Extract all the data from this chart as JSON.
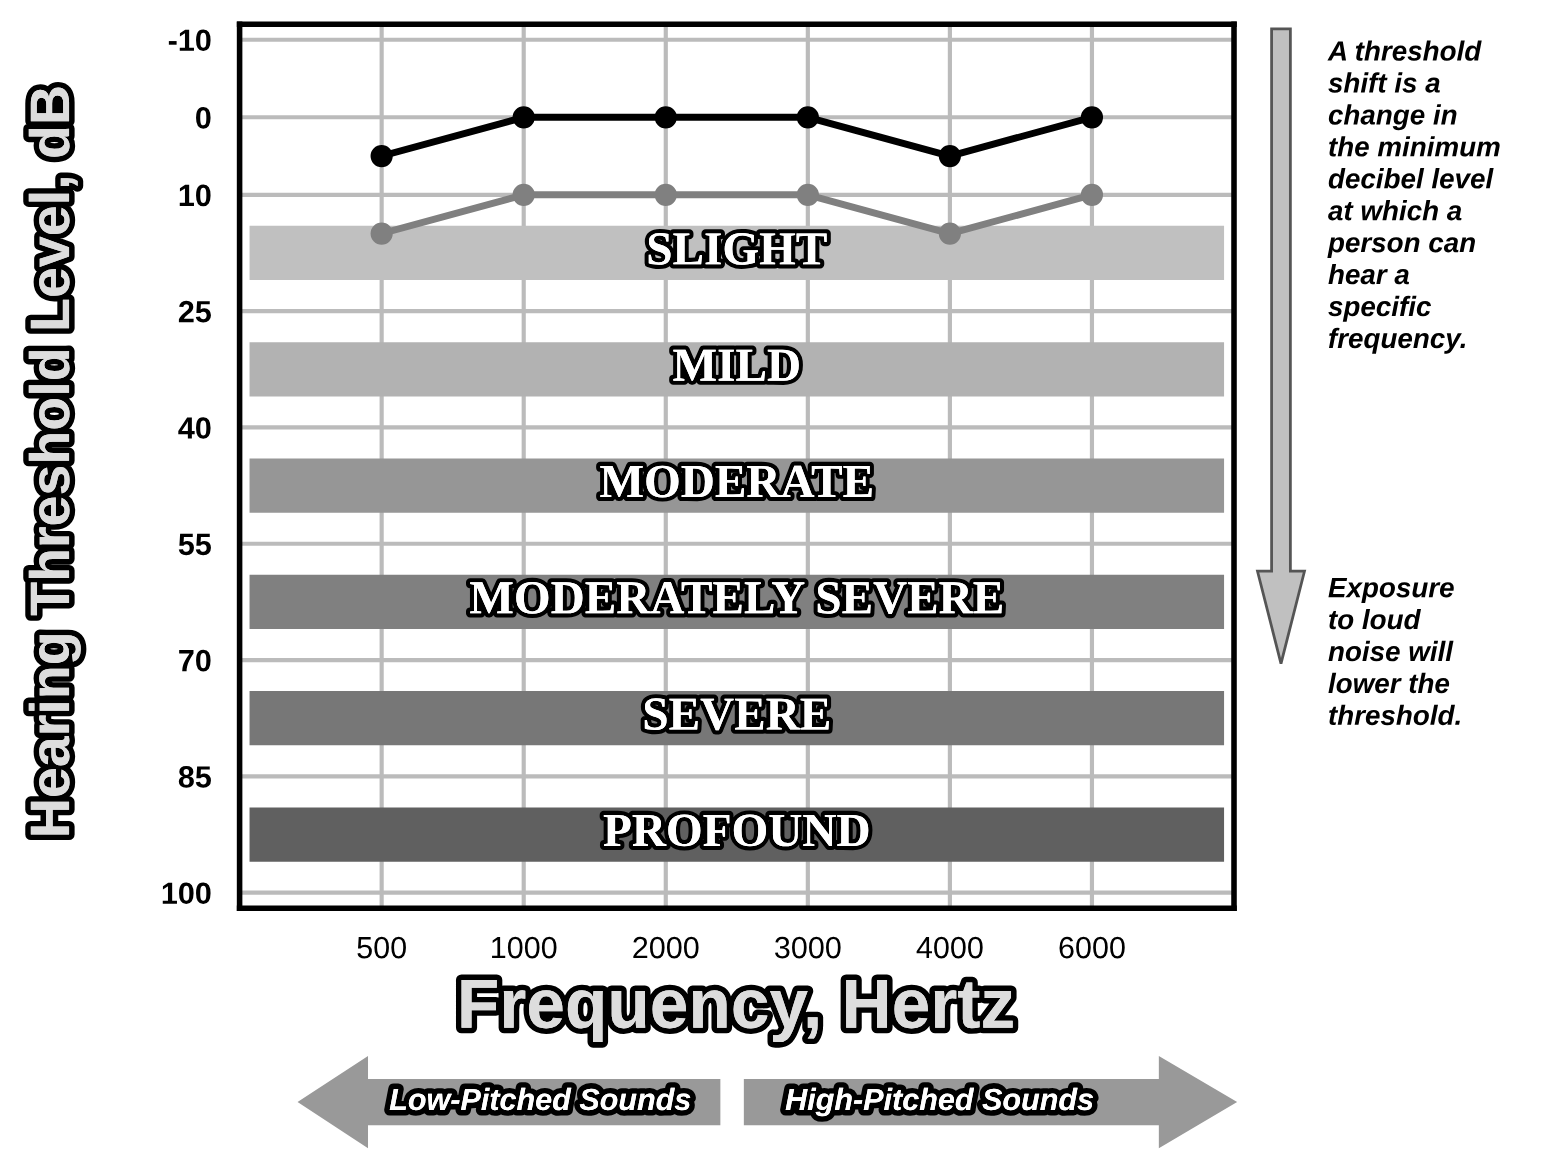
{
  "chart_data": {
    "type": "line",
    "xlabel": "Frequency, Hertz",
    "ylabel": "Hearing Threshold Level, dB",
    "categories": [
      "500",
      "1000",
      "2000",
      "3000",
      "4000",
      "6000"
    ],
    "series": [
      {
        "color": "#000000",
        "values": [
          5,
          0,
          0,
          0,
          5,
          0
        ]
      },
      {
        "color": "#808080",
        "values": [
          15,
          10,
          10,
          10,
          15,
          10
        ]
      }
    ],
    "ylim": [
      102,
      -12
    ],
    "yticks": [
      -10,
      0,
      10,
      25,
      40,
      55,
      70,
      85,
      100
    ],
    "grid": true,
    "marker": "circle",
    "line_style": "solid",
    "bands": [
      {
        "axis": "y",
        "from": 14,
        "to": 21,
        "label": "SLIGHT",
        "color": "#c0c0c0"
      },
      {
        "axis": "y",
        "from": 29,
        "to": 36,
        "label": "MILD",
        "color": "#b2b2b2"
      },
      {
        "axis": "y",
        "from": 44,
        "to": 51,
        "label": "MODERATE",
        "color": "#969696"
      },
      {
        "axis": "y",
        "from": 59,
        "to": 66,
        "label": "MODERATELY SEVERE",
        "color": "#808080"
      },
      {
        "axis": "y",
        "from": 74,
        "to": 81,
        "label": "SEVERE",
        "color": "#777777"
      },
      {
        "axis": "y",
        "from": 89,
        "to": 96,
        "label": "PROFOUND",
        "color": "#606060"
      }
    ],
    "annotations": [
      "A threshold\nshift is a\nchange in\nthe minimum\ndecibel level\nat which a\nperson can\nhear a\nspecific\nfrequency.",
      "Exposure\nto loud\nnoise will\nlower the\nthreshold.",
      "Low-Pitched Sounds",
      "High-Pitched Sounds"
    ]
  }
}
